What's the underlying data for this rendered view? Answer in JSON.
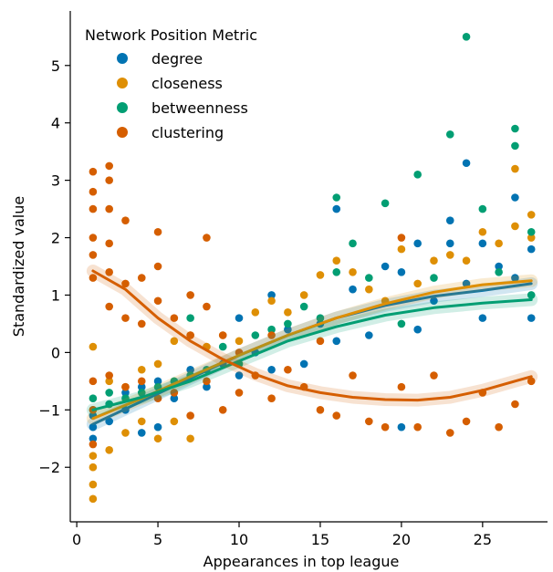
{
  "chart_data": {
    "type": "scatter",
    "title": "",
    "xlabel": "Appearances in top league",
    "ylabel": "Standardized value",
    "xlim": [
      -0.4,
      29.0
    ],
    "ylim": [
      -2.95,
      5.95
    ],
    "xticks": [
      0,
      5,
      10,
      15,
      20,
      25
    ],
    "yticks": [
      -2,
      -1,
      0,
      1,
      2,
      3,
      4,
      5
    ],
    "xtick_labels": [
      "0",
      "5",
      "10",
      "15",
      "20",
      "25"
    ],
    "ytick_labels": [
      "−2",
      "−1",
      "0",
      "1",
      "2",
      "3",
      "4",
      "5"
    ],
    "grid": false,
    "legend": {
      "title": "Network Position Metric",
      "placement": "top-left"
    },
    "series": [
      {
        "name": "degree",
        "color": "#0173b2",
        "trend": [
          [
            1,
            -1.25
          ],
          [
            4,
            -0.85
          ],
          [
            7,
            -0.45
          ],
          [
            10,
            -0.05
          ],
          [
            13,
            0.3
          ],
          [
            16,
            0.6
          ],
          [
            19,
            0.82
          ],
          [
            22,
            0.98
          ],
          [
            25,
            1.08
          ],
          [
            28,
            1.2
          ]
        ],
        "points": [
          [
            1,
            -1.5
          ],
          [
            1,
            -1.3
          ],
          [
            1,
            -1.1
          ],
          [
            2,
            -1.2
          ],
          [
            2,
            -0.9
          ],
          [
            3,
            -1.0
          ],
          [
            3,
            -0.7
          ],
          [
            4,
            -1.4
          ],
          [
            4,
            -0.6
          ],
          [
            5,
            -1.3
          ],
          [
            5,
            -0.5
          ],
          [
            6,
            -0.8
          ],
          [
            7,
            -0.3
          ],
          [
            8,
            -0.6
          ],
          [
            9,
            -0.2
          ],
          [
            10,
            0.6
          ],
          [
            10,
            -0.4
          ],
          [
            11,
            0.0
          ],
          [
            12,
            1.0
          ],
          [
            12,
            -0.3
          ],
          [
            13,
            0.4
          ],
          [
            14,
            -0.2
          ],
          [
            15,
            0.5
          ],
          [
            16,
            2.5
          ],
          [
            16,
            0.2
          ],
          [
            17,
            1.1
          ],
          [
            18,
            0.3
          ],
          [
            19,
            1.5
          ],
          [
            20,
            -1.3
          ],
          [
            20,
            1.4
          ],
          [
            21,
            1.9
          ],
          [
            21,
            0.4
          ],
          [
            22,
            0.9
          ],
          [
            23,
            2.3
          ],
          [
            23,
            1.9
          ],
          [
            24,
            3.3
          ],
          [
            24,
            1.2
          ],
          [
            25,
            1.9
          ],
          [
            25,
            0.6
          ],
          [
            26,
            1.5
          ],
          [
            27,
            2.7
          ],
          [
            27,
            1.3
          ],
          [
            28,
            1.8
          ],
          [
            28,
            0.6
          ]
        ]
      },
      {
        "name": "closeness",
        "color": "#de8f05",
        "trend": [
          [
            1,
            -1.15
          ],
          [
            4,
            -0.8
          ],
          [
            7,
            -0.42
          ],
          [
            10,
            -0.05
          ],
          [
            13,
            0.3
          ],
          [
            16,
            0.6
          ],
          [
            19,
            0.85
          ],
          [
            22,
            1.05
          ],
          [
            25,
            1.18
          ],
          [
            28,
            1.25
          ]
        ],
        "points": [
          [
            1,
            -2.55
          ],
          [
            1,
            -2.3
          ],
          [
            1,
            -2.0
          ],
          [
            1,
            -1.8
          ],
          [
            1,
            0.1
          ],
          [
            2,
            -1.7
          ],
          [
            2,
            -0.5
          ],
          [
            3,
            -1.4
          ],
          [
            3,
            -0.6
          ],
          [
            4,
            -1.2
          ],
          [
            4,
            -0.3
          ],
          [
            5,
            -1.5
          ],
          [
            5,
            -0.2
          ],
          [
            6,
            -1.2
          ],
          [
            6,
            0.2
          ],
          [
            7,
            -1.5
          ],
          [
            7,
            0.3
          ],
          [
            8,
            0.1
          ],
          [
            9,
            0.3
          ],
          [
            10,
            0.2
          ],
          [
            11,
            0.7
          ],
          [
            12,
            0.9
          ],
          [
            13,
            0.7
          ],
          [
            14,
            1.0
          ],
          [
            15,
            1.35
          ],
          [
            16,
            1.6
          ],
          [
            17,
            1.4
          ],
          [
            18,
            1.1
          ],
          [
            19,
            0.9
          ],
          [
            20,
            1.8
          ],
          [
            21,
            1.2
          ],
          [
            22,
            1.6
          ],
          [
            23,
            1.7
          ],
          [
            24,
            1.6
          ],
          [
            25,
            2.1
          ],
          [
            26,
            1.9
          ],
          [
            27,
            2.2
          ],
          [
            27,
            3.2
          ],
          [
            28,
            2.0
          ],
          [
            28,
            2.4
          ]
        ]
      },
      {
        "name": "betweenness",
        "color": "#029e73",
        "trend": [
          [
            1,
            -1.0
          ],
          [
            4,
            -0.78
          ],
          [
            7,
            -0.5
          ],
          [
            10,
            -0.15
          ],
          [
            13,
            0.2
          ],
          [
            16,
            0.45
          ],
          [
            19,
            0.65
          ],
          [
            22,
            0.78
          ],
          [
            25,
            0.86
          ],
          [
            28,
            0.92
          ]
        ],
        "points": [
          [
            1,
            -1.0
          ],
          [
            1,
            -0.8
          ],
          [
            2,
            -0.9
          ],
          [
            2,
            -0.7
          ],
          [
            3,
            -0.8
          ],
          [
            4,
            -0.7
          ],
          [
            5,
            -0.6
          ],
          [
            6,
            -0.5
          ],
          [
            7,
            0.6
          ],
          [
            7,
            -0.4
          ],
          [
            8,
            -0.3
          ],
          [
            9,
            0.1
          ],
          [
            10,
            -0.2
          ],
          [
            11,
            0.3
          ],
          [
            12,
            0.4
          ],
          [
            13,
            0.5
          ],
          [
            14,
            0.8
          ],
          [
            15,
            0.6
          ],
          [
            16,
            2.7
          ],
          [
            16,
            1.4
          ],
          [
            17,
            1.9
          ],
          [
            18,
            1.3
          ],
          [
            19,
            2.6
          ],
          [
            20,
            0.5
          ],
          [
            21,
            3.1
          ],
          [
            22,
            1.3
          ],
          [
            23,
            3.8
          ],
          [
            24,
            5.5
          ],
          [
            25,
            2.5
          ],
          [
            26,
            1.4
          ],
          [
            27,
            3.9
          ],
          [
            27,
            3.6
          ],
          [
            28,
            2.1
          ],
          [
            28,
            1.0
          ]
        ]
      },
      {
        "name": "clustering",
        "color": "#d55e00",
        "trend": [
          [
            1,
            1.42
          ],
          [
            3,
            1.1
          ],
          [
            5,
            0.6
          ],
          [
            7,
            0.2
          ],
          [
            9,
            -0.12
          ],
          [
            11,
            -0.38
          ],
          [
            13,
            -0.58
          ],
          [
            15,
            -0.7
          ],
          [
            17,
            -0.78
          ],
          [
            19,
            -0.82
          ],
          [
            21,
            -0.83
          ],
          [
            23,
            -0.78
          ],
          [
            25,
            -0.66
          ],
          [
            27,
            -0.5
          ],
          [
            28,
            -0.42
          ]
        ],
        "points": [
          [
            1,
            3.15
          ],
          [
            1,
            2.8
          ],
          [
            1,
            2.5
          ],
          [
            1,
            2.0
          ],
          [
            1,
            1.7
          ],
          [
            1,
            1.3
          ],
          [
            1,
            -0.5
          ],
          [
            1,
            -1.0
          ],
          [
            1,
            -1.6
          ],
          [
            2,
            3.25
          ],
          [
            2,
            3.0
          ],
          [
            2,
            2.5
          ],
          [
            2,
            1.9
          ],
          [
            2,
            1.4
          ],
          [
            2,
            0.8
          ],
          [
            2,
            -0.4
          ],
          [
            3,
            2.3
          ],
          [
            3,
            1.2
          ],
          [
            3,
            0.6
          ],
          [
            3,
            -0.6
          ],
          [
            4,
            1.3
          ],
          [
            4,
            0.5
          ],
          [
            4,
            -0.5
          ],
          [
            5,
            2.1
          ],
          [
            5,
            1.5
          ],
          [
            5,
            0.9
          ],
          [
            5,
            -0.8
          ],
          [
            6,
            0.6
          ],
          [
            6,
            -0.7
          ],
          [
            7,
            1.0
          ],
          [
            7,
            0.3
          ],
          [
            7,
            -1.1
          ],
          [
            8,
            2.0
          ],
          [
            8,
            0.8
          ],
          [
            8,
            -0.5
          ],
          [
            9,
            0.3
          ],
          [
            9,
            -1.0
          ],
          [
            10,
            0.0
          ],
          [
            10,
            -0.7
          ],
          [
            11,
            -0.4
          ],
          [
            12,
            0.3
          ],
          [
            12,
            -0.8
          ],
          [
            13,
            -0.3
          ],
          [
            14,
            -0.6
          ],
          [
            15,
            0.2
          ],
          [
            15,
            -1.0
          ],
          [
            16,
            -1.1
          ],
          [
            17,
            -0.4
          ],
          [
            18,
            -1.2
          ],
          [
            19,
            -1.3
          ],
          [
            20,
            2.0
          ],
          [
            20,
            -0.6
          ],
          [
            21,
            -1.3
          ],
          [
            22,
            -0.4
          ],
          [
            23,
            -1.4
          ],
          [
            24,
            -1.2
          ],
          [
            25,
            -0.7
          ],
          [
            26,
            -1.3
          ],
          [
            27,
            -0.9
          ],
          [
            28,
            -0.5
          ]
        ]
      }
    ]
  }
}
